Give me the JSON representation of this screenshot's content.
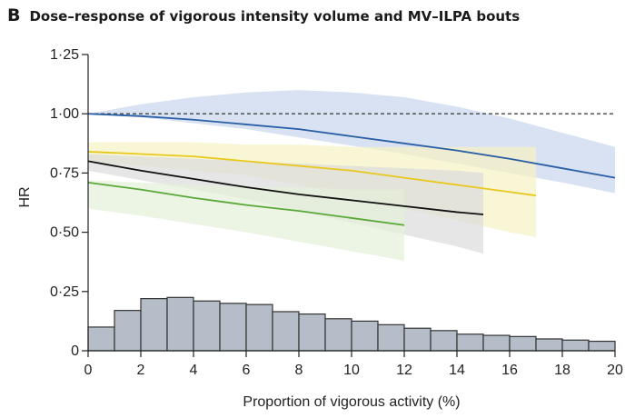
{
  "panel": {
    "letter": "B",
    "title": "Dose–response of vigorous intensity volume and MV–ILPA bouts"
  },
  "chart_data": {
    "type": "line",
    "xlabel": "Proportion of vigorous activity (%)",
    "ylabel": "HR",
    "xlim": [
      0,
      20
    ],
    "ylim": [
      0,
      1.25
    ],
    "x_ticks": [
      "0",
      "2",
      "4",
      "6",
      "8",
      "10",
      "12",
      "14",
      "16",
      "18",
      "20"
    ],
    "y_ticks": [
      "0",
      "0·25",
      "0·50",
      "0·75",
      "1·00",
      "1·25"
    ],
    "reference_line": {
      "y": 1.0,
      "style": "dashed"
    },
    "series": [
      {
        "color": "#2a5fa5",
        "band_color": "#c9d6ec",
        "x": [
          0,
          2,
          4,
          6,
          8,
          10,
          12,
          14,
          16,
          18,
          20
        ],
        "y": [
          1.0,
          0.99,
          0.975,
          0.955,
          0.935,
          0.905,
          0.875,
          0.845,
          0.81,
          0.77,
          0.73
        ],
        "lower": [
          1.0,
          0.985,
          0.96,
          0.935,
          0.9,
          0.865,
          0.83,
          0.79,
          0.75,
          0.71,
          0.665
        ],
        "upper": [
          1.0,
          1.04,
          1.07,
          1.09,
          1.1,
          1.09,
          1.07,
          1.03,
          0.98,
          0.92,
          0.86
        ]
      },
      {
        "color": "#e8c81e",
        "band_color": "#f7f2c4",
        "x": [
          0,
          2,
          4,
          6,
          8,
          10,
          12,
          14,
          16,
          17
        ],
        "y": [
          0.84,
          0.83,
          0.82,
          0.8,
          0.78,
          0.76,
          0.73,
          0.7,
          0.67,
          0.655
        ],
        "lower": [
          0.8,
          0.78,
          0.76,
          0.74,
          0.7,
          0.65,
          0.6,
          0.55,
          0.5,
          0.48
        ],
        "upper": [
          0.88,
          0.88,
          0.88,
          0.87,
          0.87,
          0.86,
          0.86,
          0.86,
          0.86,
          0.86
        ]
      },
      {
        "color": "#111111",
        "band_color": "#dcdcdc",
        "x": [
          0,
          2,
          4,
          6,
          8,
          10,
          12,
          14,
          15
        ],
        "y": [
          0.8,
          0.76,
          0.725,
          0.69,
          0.66,
          0.635,
          0.61,
          0.585,
          0.575
        ],
        "lower": [
          0.76,
          0.72,
          0.68,
          0.64,
          0.59,
          0.54,
          0.49,
          0.44,
          0.41
        ],
        "upper": [
          0.83,
          0.82,
          0.81,
          0.8,
          0.79,
          0.78,
          0.77,
          0.76,
          0.75
        ]
      },
      {
        "color": "#5aa83a",
        "band_color": "#e4efd8",
        "x": [
          0,
          2,
          4,
          6,
          8,
          10,
          12
        ],
        "y": [
          0.71,
          0.68,
          0.645,
          0.615,
          0.59,
          0.56,
          0.53
        ],
        "lower": [
          0.6,
          0.57,
          0.535,
          0.5,
          0.46,
          0.42,
          0.38
        ],
        "upper": [
          0.72,
          0.71,
          0.7,
          0.69,
          0.69,
          0.68,
          0.68
        ]
      }
    ],
    "histogram": {
      "bin_width": 1,
      "bin_starts": [
        0,
        1,
        2,
        3,
        4,
        5,
        6,
        7,
        8,
        9,
        10,
        11,
        12,
        13,
        14,
        15,
        16,
        17,
        18,
        19
      ],
      "heights": [
        0.1,
        0.17,
        0.22,
        0.225,
        0.21,
        0.2,
        0.195,
        0.165,
        0.155,
        0.135,
        0.125,
        0.11,
        0.095,
        0.085,
        0.07,
        0.065,
        0.06,
        0.05,
        0.045,
        0.04
      ],
      "fill": "#b5bec8",
      "stroke": "#333333"
    }
  }
}
